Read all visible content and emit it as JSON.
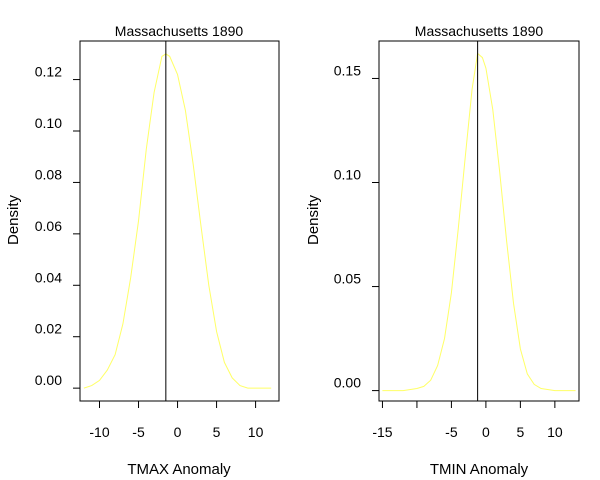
{
  "chart_data": [
    {
      "type": "line",
      "title": "Massachusetts 1890",
      "xlabel": "TMAX Anomaly",
      "ylabel": "Density",
      "xlim": [
        -12.5,
        13.0
      ],
      "ylim": [
        -0.005,
        0.135
      ],
      "xticks": [
        -10,
        -5,
        0,
        5,
        10
      ],
      "xtick_labels": [
        "-10",
        "-5",
        "0",
        "5",
        "10"
      ],
      "yticks": [
        0.0,
        0.02,
        0.04,
        0.06,
        0.08,
        0.1,
        0.12
      ],
      "ytick_labels": [
        "0.00",
        "0.02",
        "0.04",
        "0.06",
        "0.08",
        "0.10",
        "0.12"
      ],
      "series": [
        {
          "color": "#ffff66",
          "x": [
            -12,
            -11,
            -10,
            -9,
            -8,
            -7,
            -6,
            -5,
            -4,
            -3,
            -2,
            -1.5,
            -1,
            0,
            1,
            2,
            3,
            4,
            5,
            6,
            7,
            8,
            9,
            10,
            11,
            12
          ],
          "y": [
            0.0,
            0.001,
            0.003,
            0.007,
            0.013,
            0.025,
            0.043,
            0.065,
            0.093,
            0.115,
            0.129,
            0.13,
            0.129,
            0.122,
            0.108,
            0.087,
            0.063,
            0.04,
            0.022,
            0.01,
            0.004,
            0.001,
            0.0,
            0.0,
            0.0,
            0.0
          ]
        }
      ],
      "vline": {
        "x": -1.5,
        "color": "#000000"
      }
    },
    {
      "type": "line",
      "title": "Massachusetts 1890",
      "xlabel": "TMIN Anomaly",
      "ylabel": "Density",
      "xlim": [
        -15.5,
        13.5
      ],
      "ylim": [
        -0.005,
        0.168
      ],
      "xticks": [
        -15,
        -10,
        -5,
        0,
        5,
        10
      ],
      "xtick_labels": [
        "-15",
        "",
        "-5",
        "0",
        "5",
        "10"
      ],
      "yticks": [
        0.0,
        0.05,
        0.1,
        0.15
      ],
      "ytick_labels": [
        "0.00",
        "0.05",
        "0.10",
        "0.15"
      ],
      "series": [
        {
          "color": "#ffff66",
          "x": [
            -15,
            -12,
            -10,
            -9,
            -8,
            -7,
            -6,
            -5,
            -4,
            -3,
            -2,
            -1.2,
            -0.5,
            0,
            1,
            2,
            3,
            4,
            5,
            6,
            7,
            8,
            10,
            13
          ],
          "y": [
            0.0,
            0.0,
            0.001,
            0.002,
            0.005,
            0.012,
            0.025,
            0.047,
            0.078,
            0.112,
            0.145,
            0.162,
            0.16,
            0.155,
            0.135,
            0.105,
            0.072,
            0.042,
            0.02,
            0.008,
            0.003,
            0.001,
            0.0,
            0.0
          ]
        }
      ],
      "vline": {
        "x": -1.2,
        "color": "#000000"
      }
    }
  ]
}
